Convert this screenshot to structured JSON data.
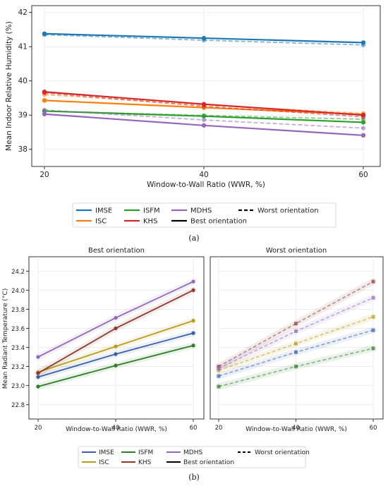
{
  "colors": {
    "IMSE": "#1f77b4",
    "ISC": "#ff7f0e",
    "ISFM": "#2ca02c",
    "KHS": "#d62728",
    "MDHS": "#9467bd",
    "b_IMSE": "#3a5fa8",
    "b_ISC": "#b89a1a",
    "b_ISFM": "#2c7d22",
    "b_KHS": "#8b3a2e",
    "b_MDHS": "#9167bd"
  },
  "chart_data": [
    {
      "type": "line",
      "panel_caption": "(a)",
      "xlabel": "Window-to-Wall Ratio (WWR, %)",
      "ylabel": "Mean Indoor Relative Humidity (%)",
      "x": [
        20,
        40,
        60
      ],
      "xticks": [
        "20",
        "40",
        "60"
      ],
      "ylim": [
        37.5,
        42.2
      ],
      "yticks": [
        "38",
        "39",
        "40",
        "41",
        "42"
      ],
      "grid": true,
      "legend_position": "below",
      "legend": {
        "entries": [
          "IMSE",
          "ISC",
          "ISFM",
          "KHS",
          "MDHS",
          "Best orientation",
          "Worst orientation"
        ]
      },
      "series": [
        {
          "name": "IMSE",
          "orientation": "best",
          "values": [
            41.38,
            41.25,
            41.12
          ]
        },
        {
          "name": "IMSE",
          "orientation": "worst",
          "values": [
            41.35,
            41.19,
            41.05
          ]
        },
        {
          "name": "ISC",
          "orientation": "best",
          "values": [
            39.43,
            39.22,
            39.02
          ]
        },
        {
          "name": "ISC",
          "orientation": "worst",
          "values": [
            39.6,
            39.3,
            39.05
          ]
        },
        {
          "name": "ISFM",
          "orientation": "best",
          "values": [
            39.12,
            38.97,
            38.79
          ]
        },
        {
          "name": "ISFM",
          "orientation": "worst",
          "values": [
            39.12,
            38.99,
            38.88
          ]
        },
        {
          "name": "KHS",
          "orientation": "best",
          "values": [
            39.68,
            39.32,
            39.0
          ]
        },
        {
          "name": "KHS",
          "orientation": "worst",
          "values": [
            39.65,
            39.26,
            38.95
          ]
        },
        {
          "name": "MDHS",
          "orientation": "best",
          "values": [
            39.03,
            38.7,
            38.41
          ]
        },
        {
          "name": "MDHS",
          "orientation": "worst",
          "values": [
            39.15,
            38.86,
            38.62
          ]
        }
      ]
    },
    {
      "type": "line",
      "panel_caption": "(b)",
      "title": "Best orientation",
      "xlabel": "Window-to-Wall Ratio (WWR, %)",
      "ylabel": "Mean Radiant Temperature (°C)",
      "x": [
        20,
        40,
        60
      ],
      "xticks": [
        "20",
        "40",
        "60"
      ],
      "ylim": [
        22.65,
        24.35
      ],
      "yticks": [
        "22.8",
        "23.0",
        "23.2",
        "23.4",
        "23.6",
        "23.8",
        "24.0",
        "24.2"
      ],
      "grid": true,
      "series": [
        {
          "name": "IMSE",
          "values": [
            23.09,
            23.33,
            23.55
          ]
        },
        {
          "name": "ISC",
          "values": [
            23.14,
            23.41,
            23.68
          ]
        },
        {
          "name": "ISFM",
          "values": [
            22.99,
            23.21,
            23.42
          ]
        },
        {
          "name": "KHS",
          "values": [
            23.13,
            23.6,
            24.0
          ]
        },
        {
          "name": "MDHS",
          "values": [
            23.3,
            23.71,
            24.09
          ]
        }
      ]
    },
    {
      "type": "line",
      "title": "Worst orientation",
      "xlabel": "Window-to-Wall Ratio (WWR, %)",
      "x": [
        20,
        40,
        60
      ],
      "xticks": [
        "20",
        "40",
        "60"
      ],
      "ylim": [
        22.65,
        24.35
      ],
      "grid": true,
      "legend_position": "below",
      "legend": {
        "entries": [
          "IMSE",
          "ISFM",
          "MDHS",
          "Worst orientation",
          "ISC",
          "KHS",
          "Best orientation"
        ]
      },
      "series": [
        {
          "name": "IMSE",
          "values": [
            23.1,
            23.35,
            23.58
          ]
        },
        {
          "name": "ISC",
          "values": [
            23.16,
            23.44,
            23.72
          ]
        },
        {
          "name": "ISFM",
          "values": [
            22.99,
            23.2,
            23.39
          ]
        },
        {
          "name": "KHS",
          "values": [
            23.2,
            23.65,
            24.09
          ]
        },
        {
          "name": "MDHS",
          "values": [
            23.18,
            23.57,
            23.92
          ]
        }
      ]
    }
  ]
}
